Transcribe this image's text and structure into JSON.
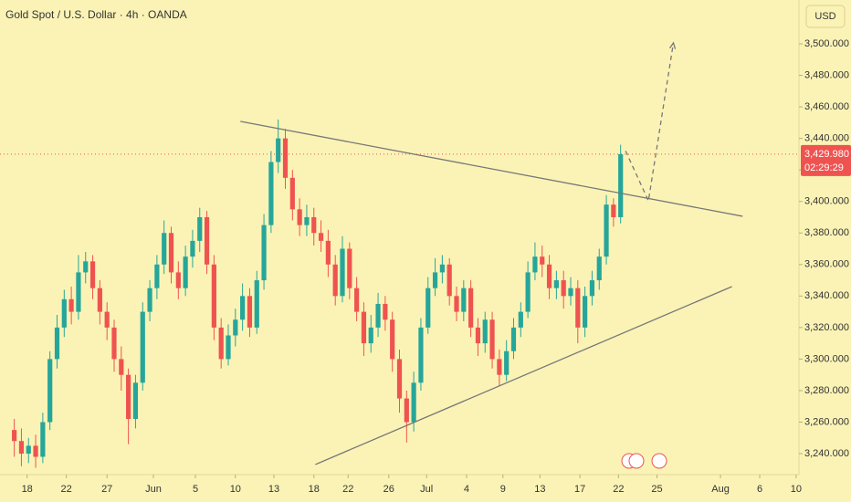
{
  "chart_data": {
    "type": "candlestick",
    "title": "Gold Spot / U.S. Dollar · 4h · OANDA",
    "currency": "USD",
    "up_color": "#26a69a",
    "down_color": "#ef5350",
    "xlim": [
      0,
      112
    ],
    "xticks": [
      {
        "value": 3.8,
        "label": "18"
      },
      {
        "value": 9.3,
        "label": "22"
      },
      {
        "value": 15.0,
        "label": "27"
      },
      {
        "value": 21.5,
        "label": "Jun"
      },
      {
        "value": 27.4,
        "label": "5"
      },
      {
        "value": 33.0,
        "label": "10"
      },
      {
        "value": 38.4,
        "label": "13"
      },
      {
        "value": 44.0,
        "label": "18"
      },
      {
        "value": 48.8,
        "label": "22"
      },
      {
        "value": 54.5,
        "label": "26"
      },
      {
        "value": 59.8,
        "label": "Jul"
      },
      {
        "value": 65.4,
        "label": "4"
      },
      {
        "value": 70.5,
        "label": "9"
      },
      {
        "value": 75.7,
        "label": "13"
      },
      {
        "value": 81.3,
        "label": "17"
      },
      {
        "value": 86.7,
        "label": "22"
      },
      {
        "value": 92.1,
        "label": "25"
      },
      {
        "value": 101.0,
        "label": "Aug"
      },
      {
        "value": 106.5,
        "label": "6"
      },
      {
        "value": 111.6,
        "label": "10"
      }
    ],
    "ylim": [
      3226.7,
      3527.8
    ],
    "yticks": [
      {
        "value": 3240,
        "label": "3,240.000"
      },
      {
        "value": 3260,
        "label": "3,260.000"
      },
      {
        "value": 3280,
        "label": "3,280.000"
      },
      {
        "value": 3300,
        "label": "3,300.000"
      },
      {
        "value": 3320,
        "label": "3,320.000"
      },
      {
        "value": 3340,
        "label": "3,340.000"
      },
      {
        "value": 3360,
        "label": "3,360.000"
      },
      {
        "value": 3380,
        "label": "3,380.000"
      },
      {
        "value": 3400,
        "label": "3,400.000"
      },
      {
        "value": 3420,
        "label": "3,420.000"
      },
      {
        "value": 3440,
        "label": "3,440.000"
      },
      {
        "value": 3460,
        "label": "3,460.000"
      },
      {
        "value": 3480,
        "label": "3,480.000"
      },
      {
        "value": 3500,
        "label": "3,500.000"
      }
    ],
    "x": [
      2,
      3,
      4,
      5,
      6,
      7,
      8,
      9,
      10,
      11,
      12,
      13,
      14,
      15,
      16,
      17,
      18,
      19,
      20,
      21,
      22,
      23,
      24,
      25,
      26,
      27,
      28,
      29,
      30,
      31,
      32,
      33,
      34,
      35,
      36,
      37,
      38,
      39,
      40,
      41,
      42,
      43,
      44,
      45,
      46,
      47,
      48,
      49,
      50,
      51,
      52,
      53,
      54,
      55,
      56,
      57,
      58,
      59,
      60,
      61,
      62,
      63,
      64,
      65,
      66,
      67,
      68,
      69,
      70,
      71,
      72,
      73,
      74,
      75,
      76,
      77,
      78,
      79,
      80,
      81,
      82,
      83,
      84,
      85,
      86,
      87
    ],
    "open": [
      3255,
      3248,
      3240,
      3245,
      3238,
      3260,
      3300,
      3320,
      3338,
      3330,
      3355,
      3362,
      3345,
      3330,
      3320,
      3300,
      3290,
      3262,
      3285,
      3330,
      3345,
      3360,
      3380,
      3355,
      3345,
      3365,
      3375,
      3390,
      3360,
      3320,
      3300,
      3315,
      3325,
      3340,
      3320,
      3350,
      3385,
      3425,
      3440,
      3415,
      3395,
      3385,
      3390,
      3380,
      3375,
      3360,
      3340,
      3370,
      3345,
      3330,
      3310,
      3320,
      3335,
      3325,
      3300,
      3275,
      3260,
      3285,
      3320,
      3345,
      3355,
      3360,
      3340,
      3330,
      3345,
      3320,
      3310,
      3325,
      3300,
      3290,
      3305,
      3320,
      3330,
      3355,
      3365,
      3360,
      3345,
      3350,
      3340,
      3345,
      3320,
      3340,
      3350,
      3365,
      3398,
      3390
    ],
    "high": [
      3262,
      3256,
      3250,
      3252,
      3266,
      3305,
      3328,
      3344,
      3346,
      3366,
      3368,
      3366,
      3350,
      3336,
      3325,
      3308,
      3294,
      3290,
      3336,
      3350,
      3366,
      3388,
      3384,
      3362,
      3372,
      3382,
      3396,
      3394,
      3366,
      3326,
      3322,
      3332,
      3348,
      3345,
      3356,
      3392,
      3432,
      3452,
      3446,
      3420,
      3402,
      3398,
      3396,
      3388,
      3382,
      3366,
      3378,
      3374,
      3352,
      3336,
      3328,
      3342,
      3340,
      3330,
      3306,
      3280,
      3292,
      3326,
      3352,
      3364,
      3366,
      3364,
      3346,
      3350,
      3350,
      3326,
      3330,
      3330,
      3306,
      3312,
      3326,
      3336,
      3362,
      3374,
      3372,
      3366,
      3356,
      3356,
      3352,
      3350,
      3346,
      3356,
      3370,
      3404,
      3402,
      3436
    ],
    "low": [
      3238,
      3232,
      3234,
      3231,
      3234,
      3255,
      3294,
      3314,
      3322,
      3325,
      3348,
      3338,
      3322,
      3312,
      3292,
      3280,
      3246,
      3256,
      3280,
      3324,
      3338,
      3354,
      3348,
      3338,
      3340,
      3358,
      3368,
      3354,
      3312,
      3294,
      3296,
      3308,
      3318,
      3314,
      3316,
      3344,
      3380,
      3418,
      3408,
      3388,
      3378,
      3378,
      3372,
      3368,
      3352,
      3334,
      3336,
      3338,
      3324,
      3302,
      3304,
      3314,
      3318,
      3292,
      3266,
      3247,
      3254,
      3280,
      3316,
      3340,
      3348,
      3334,
      3324,
      3324,
      3314,
      3302,
      3304,
      3294,
      3283,
      3286,
      3300,
      3314,
      3326,
      3350,
      3352,
      3338,
      3338,
      3332,
      3334,
      3310,
      3314,
      3334,
      3344,
      3360,
      3384,
      3386
    ],
    "close": [
      3248,
      3240,
      3245,
      3238,
      3260,
      3300,
      3320,
      3338,
      3330,
      3355,
      3362,
      3345,
      3330,
      3320,
      3300,
      3290,
      3262,
      3285,
      3330,
      3345,
      3360,
      3380,
      3355,
      3345,
      3365,
      3375,
      3390,
      3360,
      3320,
      3300,
      3315,
      3325,
      3340,
      3320,
      3350,
      3385,
      3425,
      3440,
      3415,
      3395,
      3385,
      3390,
      3380,
      3375,
      3360,
      3340,
      3370,
      3345,
      3330,
      3310,
      3320,
      3335,
      3325,
      3300,
      3275,
      3260,
      3285,
      3320,
      3345,
      3355,
      3360,
      3340,
      3330,
      3345,
      3320,
      3310,
      3325,
      3300,
      3290,
      3305,
      3320,
      3330,
      3355,
      3365,
      3360,
      3345,
      3350,
      3340,
      3345,
      3320,
      3340,
      3350,
      3365,
      3398,
      3390,
      3429.98
    ],
    "last_price": {
      "value": 3429.98,
      "label": "3,429.980"
    },
    "countdown": "02:29:29",
    "lines": [
      {
        "x": [
          33.7,
          104.1
        ],
        "y": [
          3450.8,
          3390.6
        ],
        "style": "solid",
        "color": "#777777"
      },
      {
        "x": [
          44.2,
          102.6
        ],
        "y": [
          3233.1,
          3346.0
        ],
        "style": "solid",
        "color": "#777777"
      },
      {
        "x": [
          87.7,
          90.9,
          94.4
        ],
        "y": [
          3432,
          3400.4,
          3500.6
        ],
        "style": "dashed",
        "color": "#777777"
      }
    ]
  }
}
